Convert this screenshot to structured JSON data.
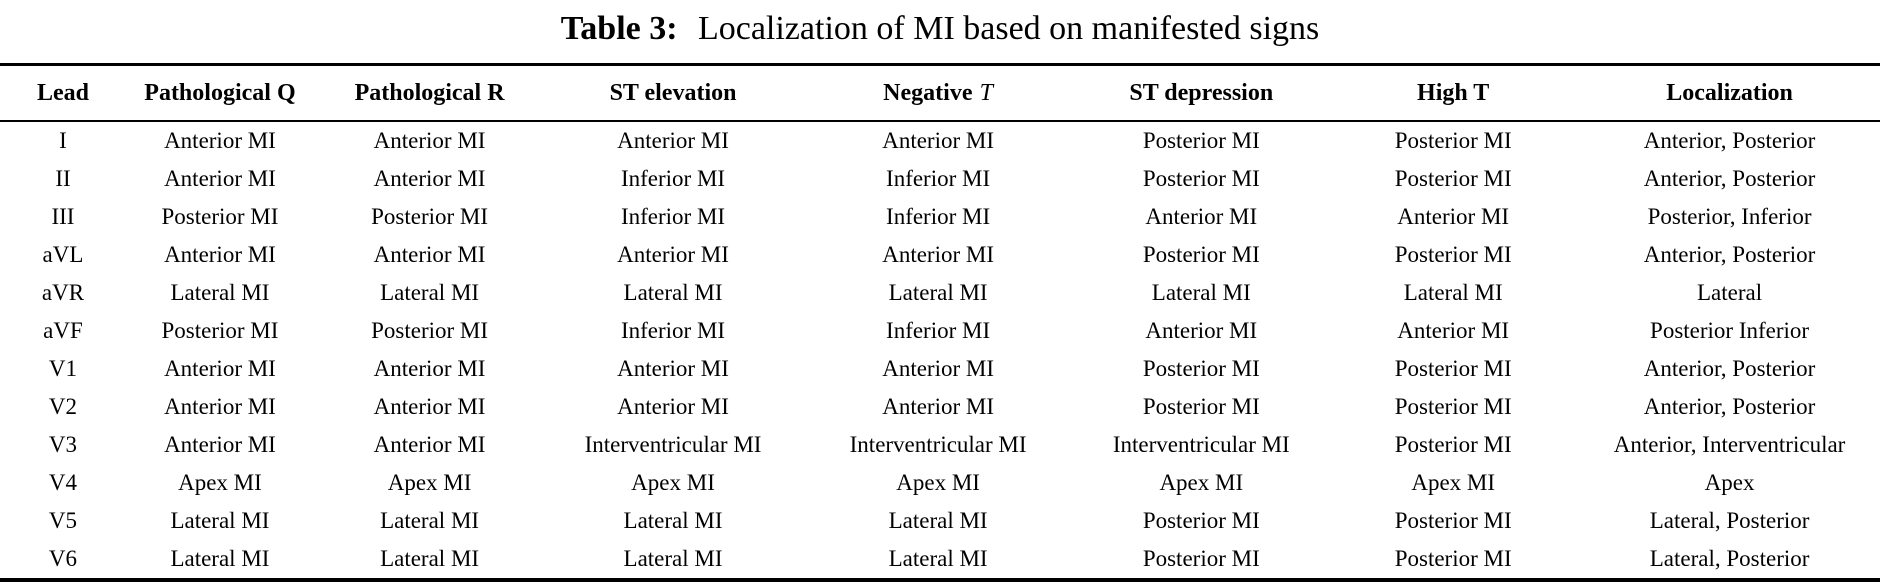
{
  "title": {
    "label": "Table 3:",
    "caption": "Localization of MI based on manifested signs"
  },
  "table": {
    "columns": [
      {
        "text": "Lead"
      },
      {
        "text": "Pathological Q"
      },
      {
        "text": "Pathological R"
      },
      {
        "text": "ST elevation"
      },
      {
        "text": "Negative",
        "italic": "T"
      },
      {
        "text": "ST depression"
      },
      {
        "text": "High T"
      },
      {
        "text": "Localization"
      }
    ],
    "rows": [
      [
        "I",
        "Anterior MI",
        "Anterior MI",
        "Anterior MI",
        "Anterior MI",
        "Posterior MI",
        "Posterior MI",
        "Anterior, Posterior"
      ],
      [
        "II",
        "Anterior MI",
        "Anterior MI",
        "Inferior MI",
        "Inferior MI",
        "Posterior MI",
        "Posterior MI",
        "Anterior, Posterior"
      ],
      [
        "III",
        "Posterior MI",
        "Posterior MI",
        "Inferior MI",
        "Inferior MI",
        "Anterior MI",
        "Anterior MI",
        "Posterior, Inferior"
      ],
      [
        "aVL",
        "Anterior MI",
        "Anterior MI",
        "Anterior MI",
        "Anterior MI",
        "Posterior MI",
        "Posterior MI",
        "Anterior, Posterior"
      ],
      [
        "aVR",
        "Lateral MI",
        "Lateral MI",
        "Lateral MI",
        "Lateral MI",
        "Lateral MI",
        "Lateral MI",
        "Lateral"
      ],
      [
        "aVF",
        "Posterior MI",
        "Posterior MI",
        "Inferior MI",
        "Inferior MI",
        "Anterior MI",
        "Anterior MI",
        "Posterior Inferior"
      ],
      [
        "V1",
        "Anterior MI",
        "Anterior MI",
        "Anterior MI",
        "Anterior MI",
        "Posterior MI",
        "Posterior MI",
        "Anterior, Posterior"
      ],
      [
        "V2",
        "Anterior MI",
        "Anterior MI",
        "Anterior MI",
        "Anterior MI",
        "Posterior MI",
        "Posterior MI",
        "Anterior, Posterior"
      ],
      [
        "V3",
        "Anterior MI",
        "Anterior MI",
        "Interventricular MI",
        "Interventricular MI",
        "Interventricular MI",
        "Posterior MI",
        "Anterior, Interventricular"
      ],
      [
        "V4",
        "Apex MI",
        "Apex MI",
        "Apex MI",
        "Apex MI",
        "Apex MI",
        "Apex MI",
        "Apex"
      ],
      [
        "V5",
        "Lateral MI",
        "Lateral MI",
        "Lateral MI",
        "Lateral MI",
        "Posterior MI",
        "Posterior MI",
        "Lateral, Posterior"
      ],
      [
        "V6",
        "Lateral MI",
        "Lateral MI",
        "Lateral MI",
        "Lateral MI",
        "Posterior MI",
        "Posterior MI",
        "Lateral, Posterior"
      ]
    ]
  },
  "colors": {
    "text": "#000000",
    "background": "#ffffff",
    "rule": "#000000"
  }
}
